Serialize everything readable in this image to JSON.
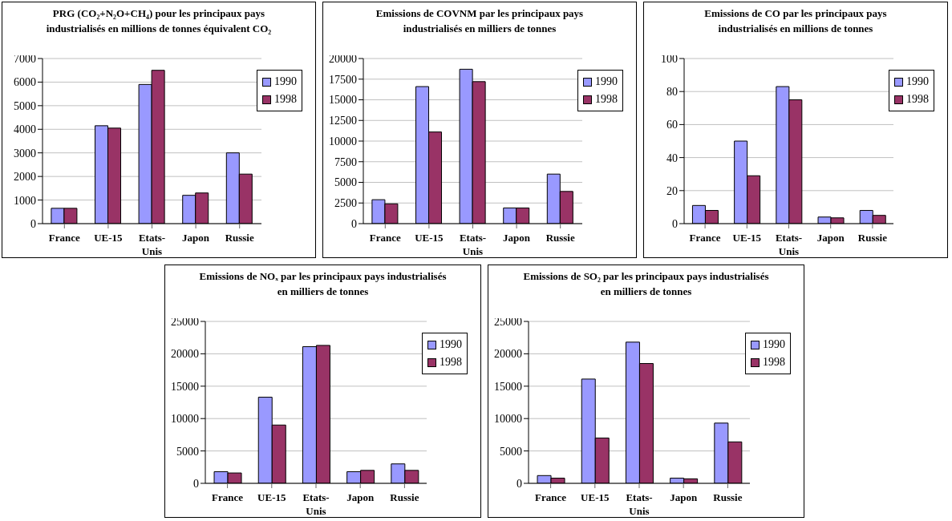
{
  "chart_data": [
    {
      "type": "bar",
      "title": "PRG (CO₂+N₂O+CH₄)  pour les principaux pays industrialisés en millions de tonnes équivalent CO₂",
      "categories": [
        "France",
        "UE-15",
        "Etats-Unis",
        "Japon",
        "Russie"
      ],
      "series": [
        {
          "name": "1990",
          "color": "#9999ff",
          "values": [
            650,
            4150,
            5900,
            1200,
            3000
          ]
        },
        {
          "name": "1998",
          "color": "#993366",
          "values": [
            650,
            4050,
            6500,
            1300,
            2100
          ]
        }
      ],
      "ylim": [
        0,
        7000
      ],
      "yticks": [
        0,
        1000,
        2000,
        3000,
        4000,
        5000,
        6000,
        7000
      ],
      "grid": "y",
      "legend": "top right"
    },
    {
      "type": "bar",
      "title": "Emissions de COVNM par les principaux pays industrialisés en milliers de tonnes",
      "categories": [
        "France",
        "UE-15",
        "Etats-Unis",
        "Japon",
        "Russie"
      ],
      "series": [
        {
          "name": "1990",
          "color": "#9999ff",
          "values": [
            2900,
            16600,
            18700,
            1900,
            6000
          ]
        },
        {
          "name": "1998",
          "color": "#993366",
          "values": [
            2400,
            11100,
            17200,
            1900,
            3900
          ]
        }
      ],
      "ylim": [
        0,
        20000
      ],
      "yticks": [
        0,
        2500,
        5000,
        7500,
        10000,
        12500,
        15000,
        17500,
        20000
      ],
      "grid": "y",
      "legend": "top right"
    },
    {
      "type": "bar",
      "title": "Emissions de CO par les principaux pays industrialisés en millions de tonnes",
      "categories": [
        "France",
        "UE-15",
        "Etats-Unis",
        "Japon",
        "Russie"
      ],
      "series": [
        {
          "name": "1990",
          "color": "#9999ff",
          "values": [
            11,
            50,
            83,
            4,
            8
          ]
        },
        {
          "name": "1998",
          "color": "#993366",
          "values": [
            8,
            29,
            75,
            3.5,
            5
          ]
        }
      ],
      "ylim": [
        0,
        100
      ],
      "yticks": [
        0,
        20,
        40,
        60,
        80,
        100
      ],
      "grid": "y",
      "legend": "top right"
    },
    {
      "type": "bar",
      "title": "Emissions de NOₓ par les principaux pays industrialisés en milliers de tonnes",
      "categories": [
        "France",
        "UE-15",
        "Etats-Unis",
        "Japon",
        "Russie"
      ],
      "series": [
        {
          "name": "1990",
          "color": "#9999ff",
          "values": [
            1800,
            13300,
            21100,
            1800,
            3000
          ]
        },
        {
          "name": "1998",
          "color": "#993366",
          "values": [
            1600,
            9000,
            21300,
            2000,
            2000
          ]
        }
      ],
      "ylim": [
        0,
        25000
      ],
      "yticks": [
        0,
        5000,
        10000,
        15000,
        20000,
        25000
      ],
      "grid": "y",
      "legend": "top right"
    },
    {
      "type": "bar",
      "title": "Emissions de SO₂ par les principaux pays industrialisés en milliers de tonnes",
      "categories": [
        "France",
        "UE-15",
        "Etats-Unis",
        "Japon",
        "Russie"
      ],
      "series": [
        {
          "name": "1990",
          "color": "#9999ff",
          "values": [
            1200,
            16100,
            21800,
            800,
            9300
          ]
        },
        {
          "name": "1998",
          "color": "#993366",
          "values": [
            800,
            7000,
            18500,
            700,
            6400
          ]
        }
      ],
      "ylim": [
        0,
        25000
      ],
      "yticks": [
        0,
        5000,
        10000,
        15000,
        20000,
        25000
      ],
      "grid": "y",
      "legend": "top right"
    }
  ]
}
